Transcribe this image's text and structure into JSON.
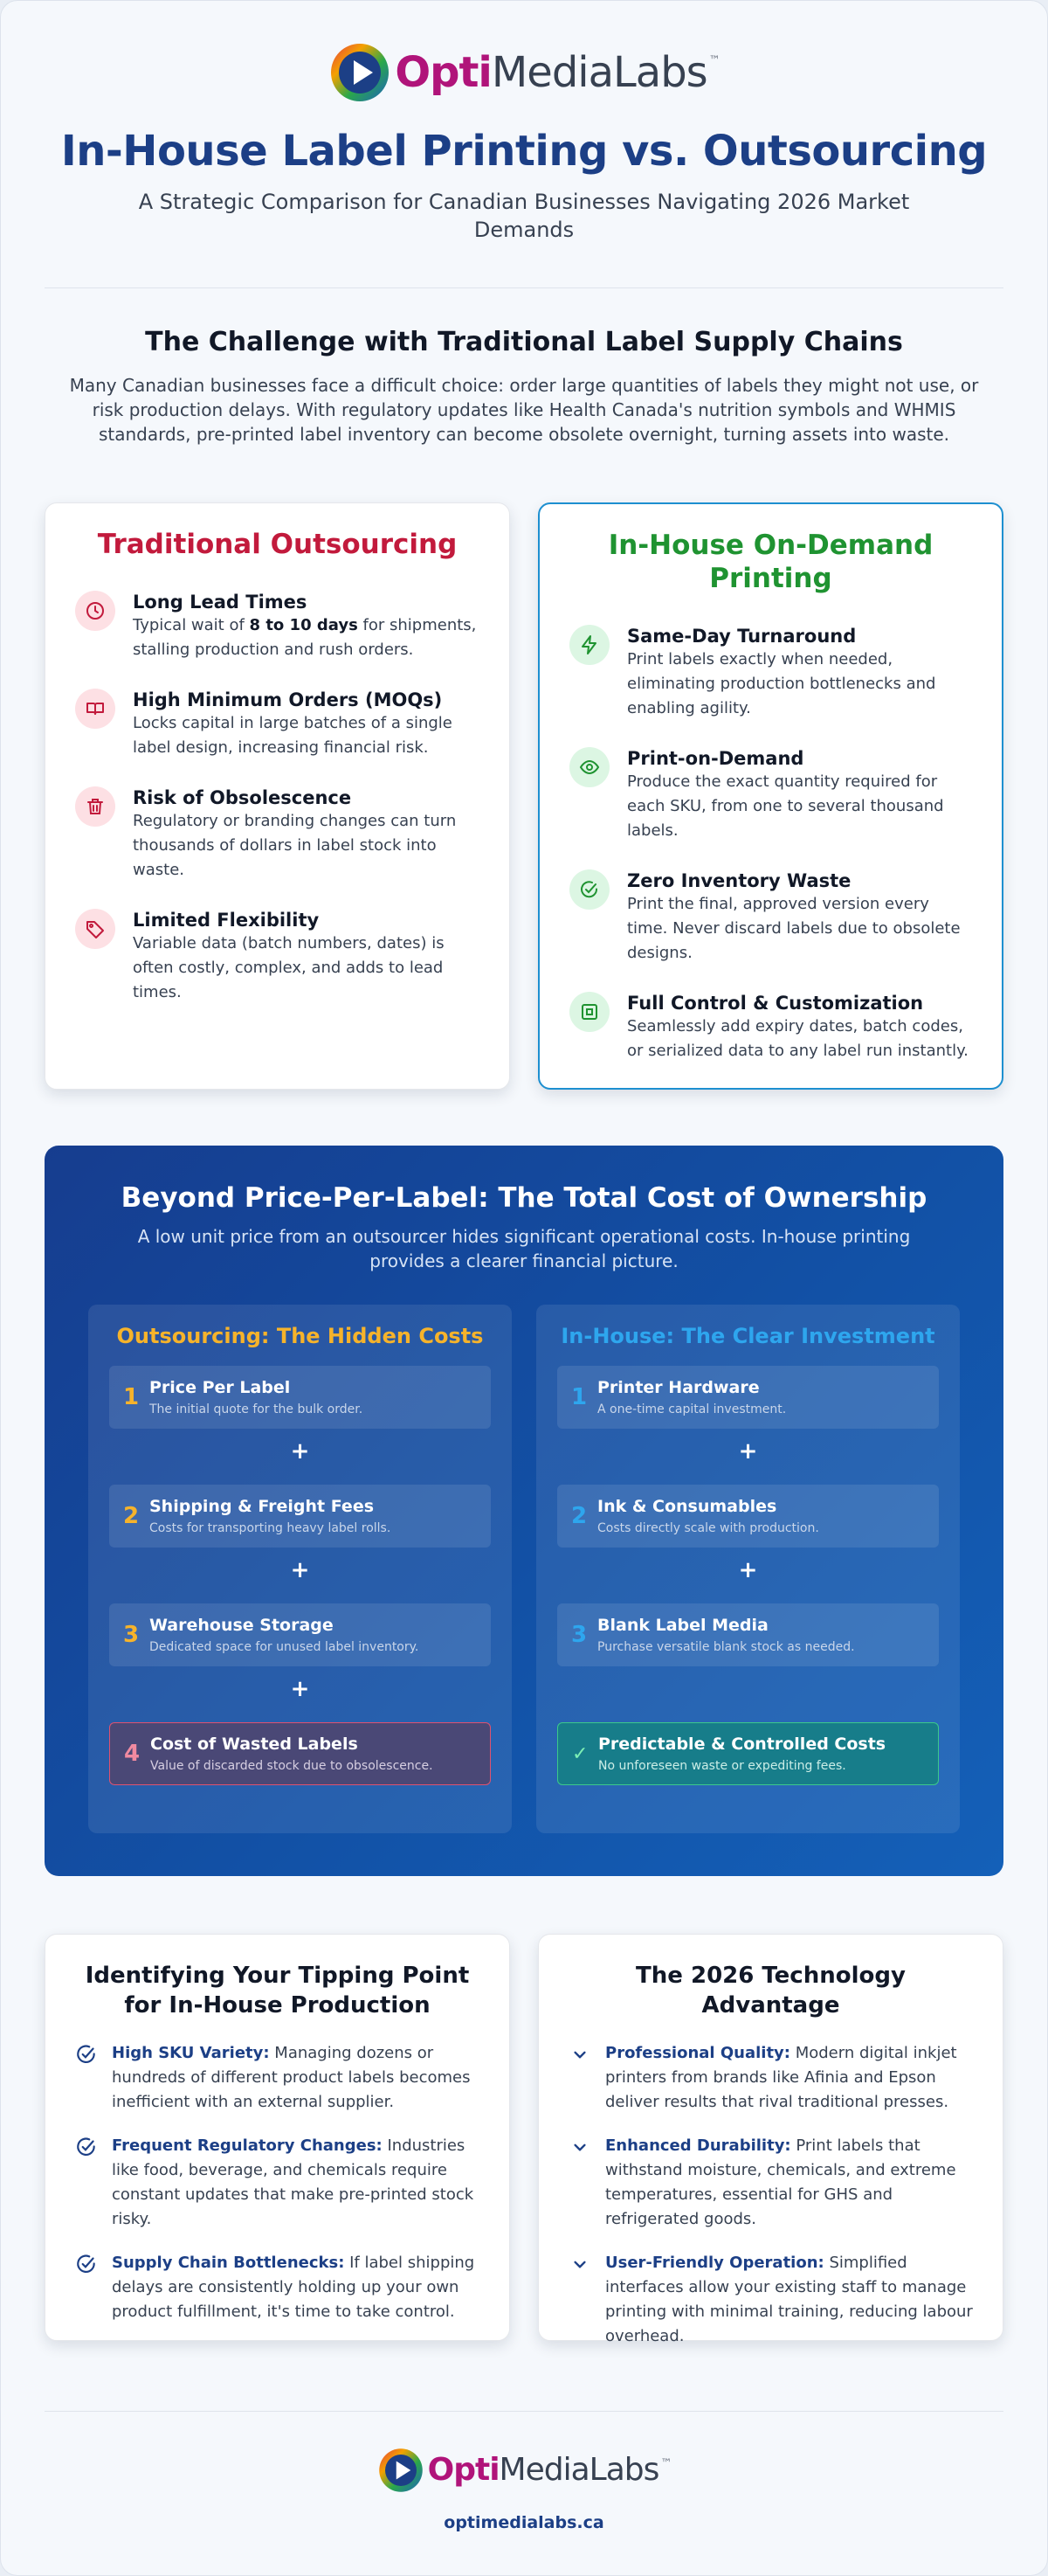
{
  "brand": {
    "opti": "Opti",
    "rest": "MediaLabs",
    "tm": "™"
  },
  "header": {
    "title": "In-House Label Printing vs. Outsourcing",
    "subtitle": "A Strategic Comparison for Canadian Businesses Navigating 2026 Market Demands"
  },
  "challenge": {
    "title": "The Challenge with Traditional Label Supply Chains",
    "text": "Many Canadian businesses face a difficult choice: order large quantities of labels they might not use, or risk production delays. With regulatory updates like Health Canada's nutrition symbols and WHMIS standards, pre-printed label inventory can become obsolete overnight, turning assets into waste."
  },
  "outsourcing": {
    "title": "Traditional Outsourcing",
    "items": [
      {
        "icon": "clock-icon",
        "title": "Long Lead Times",
        "desc_pre": "Typical wait of ",
        "desc_bold": "8 to 10 days",
        "desc_post": " for shipments, stalling production and rush orders."
      },
      {
        "icon": "book-icon",
        "title": "High Minimum Orders (MOQs)",
        "desc": "Locks capital in large batches of a single label design, increasing financial risk."
      },
      {
        "icon": "trash-icon",
        "title": "Risk of Obsolescence",
        "desc": "Regulatory or branding changes can turn thousands of dollars in label stock into waste."
      },
      {
        "icon": "tag-icon",
        "title": "Limited Flexibility",
        "desc": "Variable data (batch numbers, dates) is often costly, complex, and adds to lead times."
      }
    ]
  },
  "inhouse": {
    "title": "In-House On-Demand Printing",
    "items": [
      {
        "icon": "lightning-icon",
        "title": "Same-Day Turnaround",
        "desc": "Print labels exactly when needed, eliminating production bottlenecks and enabling agility."
      },
      {
        "icon": "eye-icon",
        "title": "Print-on-Demand",
        "desc": "Produce the exact quantity required for each SKU, from one to several thousand labels."
      },
      {
        "icon": "check-circle-icon",
        "title": "Zero Inventory Waste",
        "desc": "Print the final, approved version every time. Never discard labels due to obsolete designs."
      },
      {
        "icon": "square-target-icon",
        "title": "Full Control & Customization",
        "desc": "Seamlessly add expiry dates, batch codes, or serialized data to any label run instantly."
      }
    ]
  },
  "tco": {
    "title": "Beyond Price-Per-Label: The Total Cost of Ownership",
    "subtitle": "A low unit price from an outsourcer hides significant operational costs. In-house printing provides a clearer financial picture.",
    "plus": "+",
    "outsourcing": {
      "title": "Outsourcing: The Hidden Costs",
      "steps": [
        {
          "num": "1",
          "title": "Price Per Label",
          "desc": "The initial quote for the bulk order."
        },
        {
          "num": "2",
          "title": "Shipping & Freight Fees",
          "desc": "Costs for transporting heavy label rolls."
        },
        {
          "num": "3",
          "title": "Warehouse Storage",
          "desc": "Dedicated space for unused label inventory."
        }
      ],
      "final": {
        "num": "4",
        "title": "Cost of Wasted Labels",
        "desc": "Value of discarded stock due to obsolescence."
      }
    },
    "inhouse": {
      "title": "In-House: The Clear Investment",
      "steps": [
        {
          "num": "1",
          "title": "Printer Hardware",
          "desc": "A one-time capital investment."
        },
        {
          "num": "2",
          "title": "Ink & Consumables",
          "desc": "Costs directly scale with production."
        },
        {
          "num": "3",
          "title": "Blank Label Media",
          "desc": "Purchase versatile blank stock as needed."
        }
      ],
      "final": {
        "num": "✓",
        "title": "Predictable & Controlled Costs",
        "desc": "No unforeseen waste or expediting fees."
      }
    }
  },
  "tipping": {
    "title": "Identifying Your Tipping Point for In-House Production",
    "items": [
      {
        "bold": "High SKU Variety:",
        "text": " Managing dozens or hundreds of different product labels becomes inefficient with an external supplier."
      },
      {
        "bold": "Frequent Regulatory Changes:",
        "text": " Industries like food, beverage, and chemicals require constant updates that make pre-printed stock risky."
      },
      {
        "bold": "Supply Chain Bottlenecks:",
        "text": " If label shipping delays are consistently holding up your own product fulfillment, it's time to take control."
      }
    ]
  },
  "tech": {
    "title": "The 2026 Technology Advantage",
    "items": [
      {
        "bold": "Professional Quality:",
        "text": " Modern digital inkjet printers from brands like Afinia and Epson deliver results that rival traditional presses."
      },
      {
        "bold": "Enhanced Durability:",
        "text": " Print labels that withstand moisture, chemicals, and extreme temperatures, essential for GHS and refrigerated goods."
      },
      {
        "bold": "User-Friendly Operation:",
        "text": " Simplified interfaces allow your existing staff to manage printing with minimal training, reducing labour overhead."
      }
    ]
  },
  "footer": {
    "url": "optimedialabs.ca"
  }
}
